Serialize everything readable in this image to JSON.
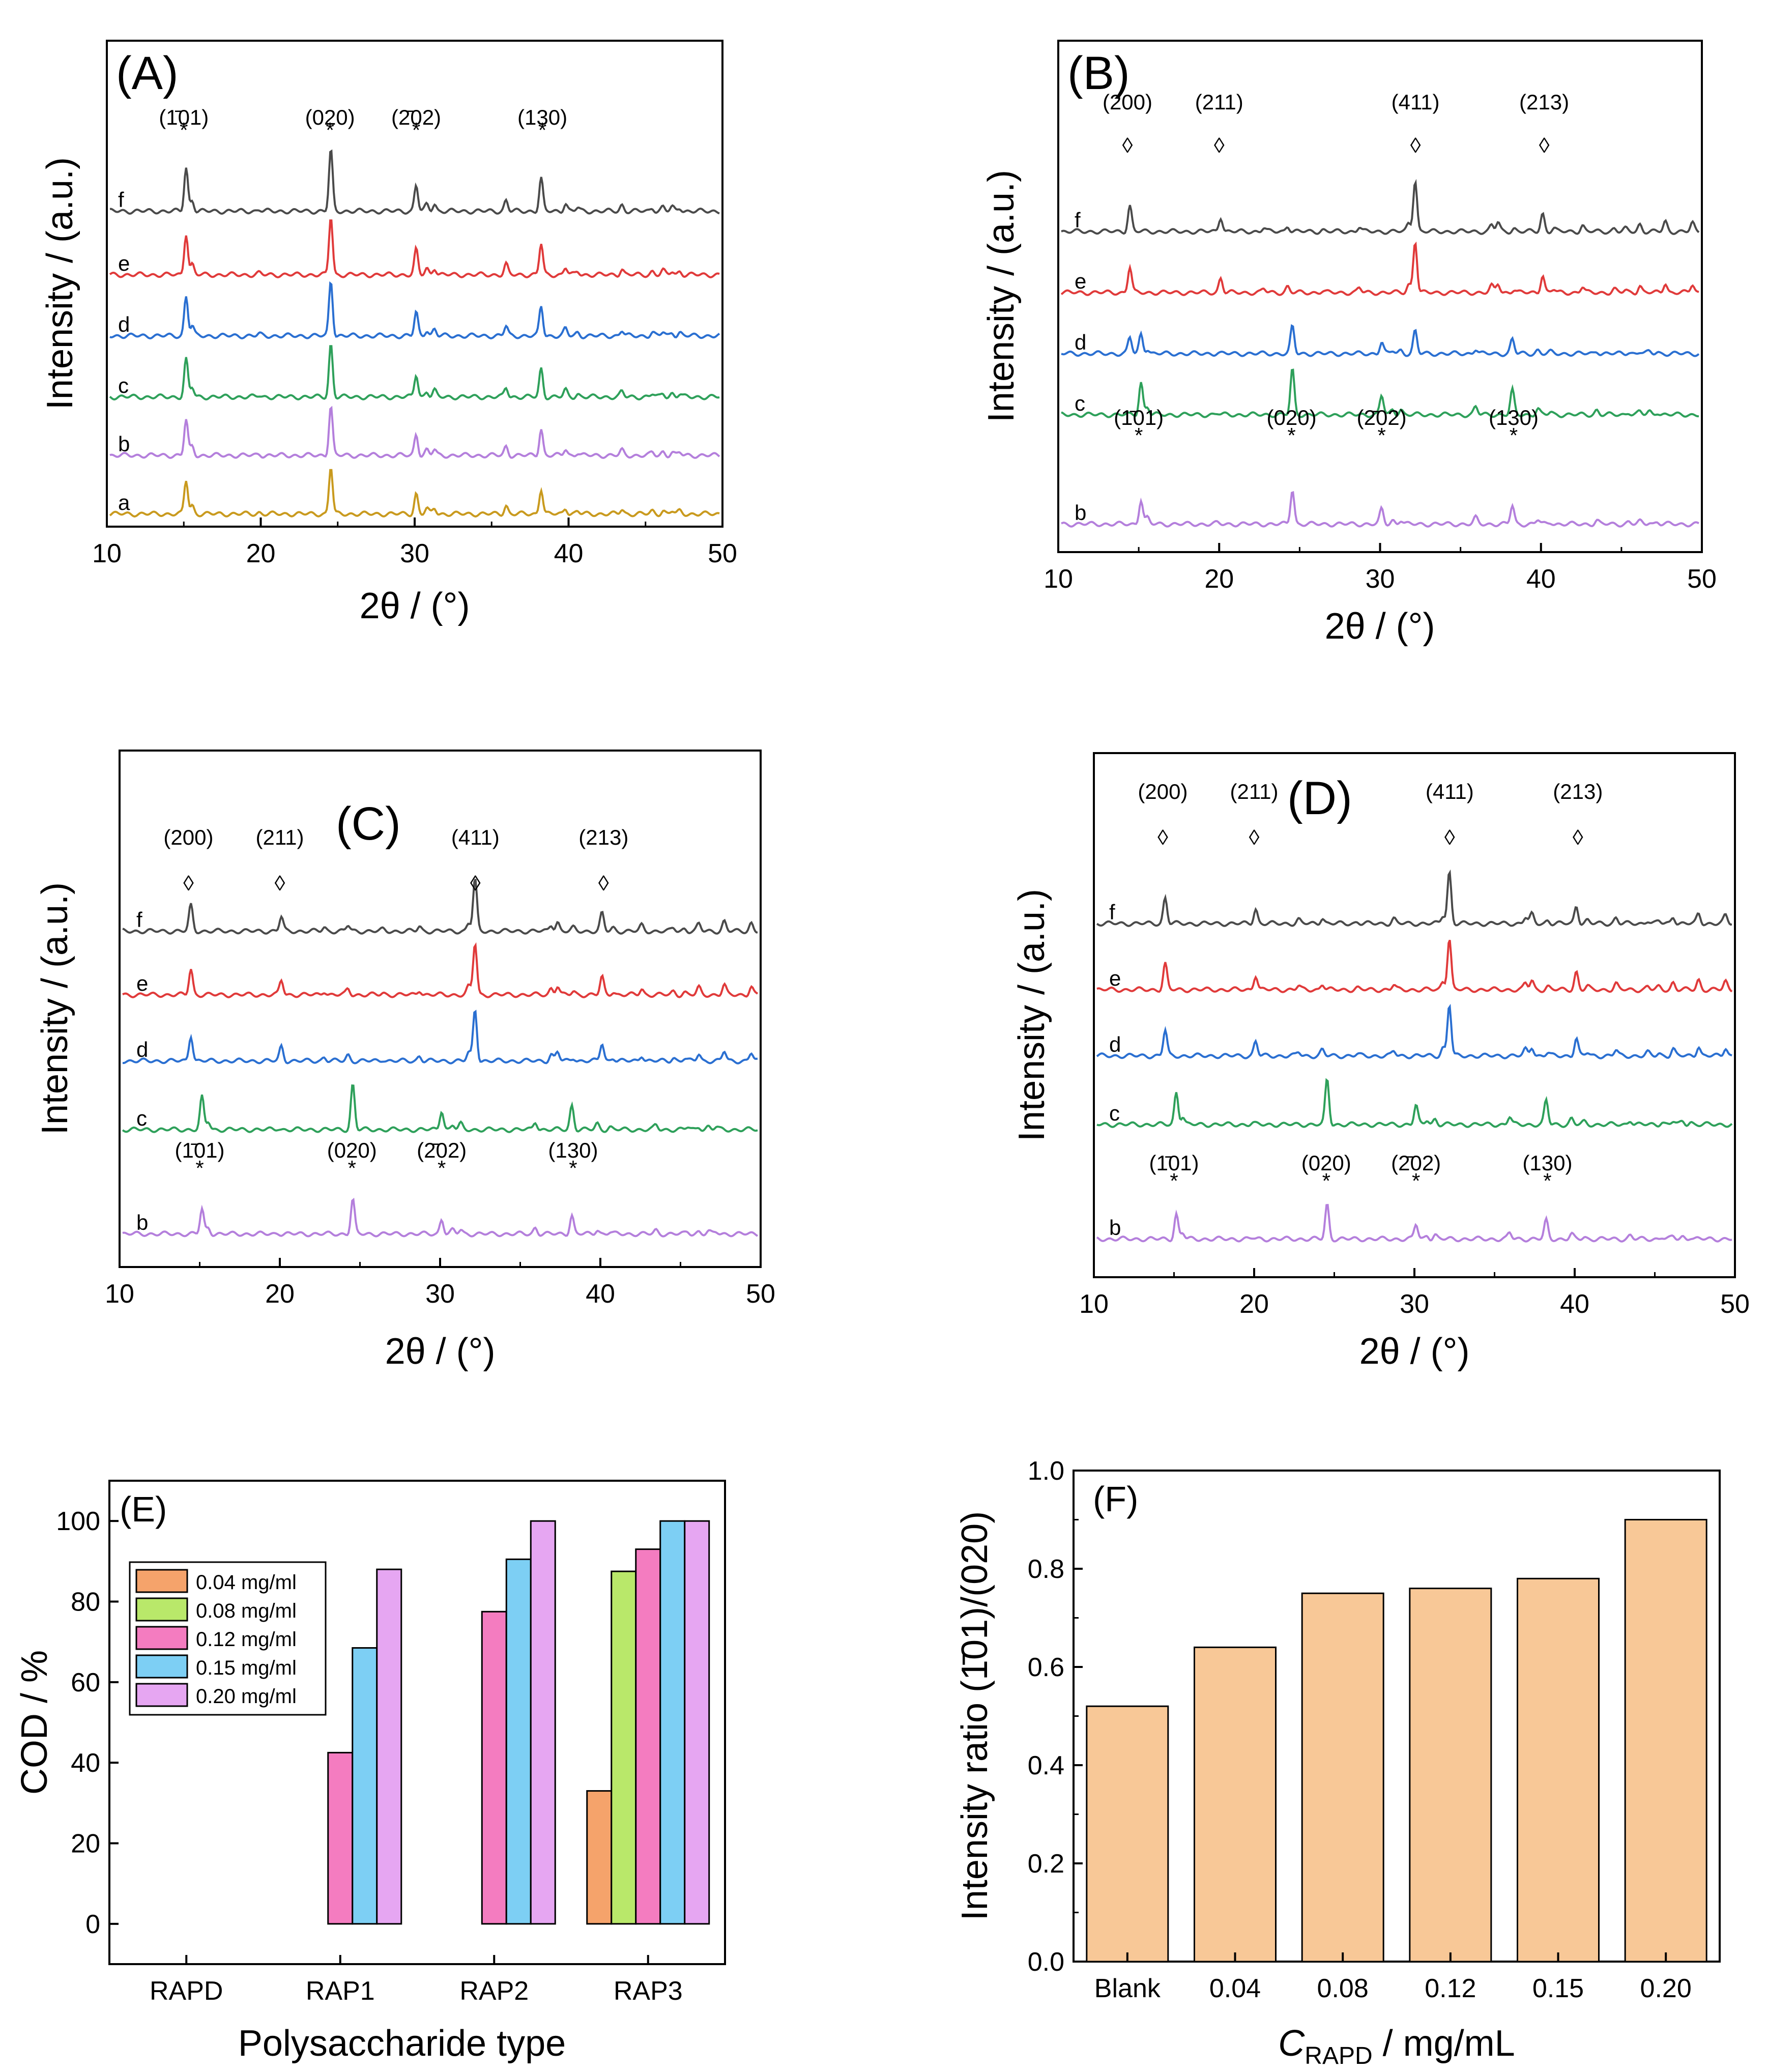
{
  "colors": {
    "a": "#c99a1e",
    "b": "#b47fdc",
    "c": "#2ea05a",
    "d": "#2a6fd1",
    "e": "#e03a3a",
    "f": "#4a4a4a",
    "bar_004": "#f5a36b",
    "bar_008": "#b9e86a",
    "bar_012": "#f47cc0",
    "bar_015": "#7dcff4",
    "bar_020": "#e6a6f2",
    "barF": "#f8c897",
    "axis": "#000000"
  },
  "chart_data": [
    {
      "type": "line",
      "panel": "(A)",
      "xlabel": "2θ / (°)",
      "ylabel": "Intensity / (a.u.)",
      "xlim": [
        10,
        50
      ],
      "xticks": [
        "10",
        "20",
        "30",
        "40",
        "50"
      ],
      "series": [
        {
          "name": "a"
        },
        {
          "name": "b"
        },
        {
          "name": "c"
        },
        {
          "name": "d"
        },
        {
          "name": "e"
        },
        {
          "name": "f"
        }
      ],
      "annotations": [
        {
          "label": "(1̄01)",
          "marker": "*",
          "x": 15.0
        },
        {
          "label": "(020)",
          "marker": "*",
          "x": 24.5
        },
        {
          "label": "(2̄02)",
          "marker": "*",
          "x": 30.1
        },
        {
          "label": "(130)",
          "marker": "*",
          "x": 38.3
        }
      ],
      "peaks": [
        [
          15.0,
          1.0
        ],
        [
          15.4,
          0.25
        ],
        [
          19.8,
          0.04
        ],
        [
          24.5,
          1.4
        ],
        [
          30.1,
          0.6
        ],
        [
          30.8,
          0.15
        ],
        [
          31.3,
          0.17
        ],
        [
          36.0,
          0.25
        ],
        [
          38.3,
          0.75
        ],
        [
          39.9,
          0.18
        ],
        [
          40.7,
          0.08
        ],
        [
          43.6,
          0.14
        ],
        [
          45.6,
          0.08
        ],
        [
          46.3,
          0.1
        ],
        [
          46.9,
          0.09
        ],
        [
          47.4,
          0.08
        ]
      ]
    },
    {
      "type": "line",
      "panel": "(B)",
      "xlabel": "2θ / (°)",
      "ylabel": "Intensity / (a.u.)",
      "xlim": [
        10,
        50
      ],
      "xticks": [
        "10",
        "20",
        "30",
        "40",
        "50"
      ],
      "series": [
        {
          "name": "b"
        },
        {
          "name": "c"
        },
        {
          "name": "d"
        },
        {
          "name": "e"
        },
        {
          "name": "f"
        }
      ],
      "annotations": [
        {
          "label": "(200)",
          "marker": "◊",
          "x": 14.3
        },
        {
          "label": "(211)",
          "marker": "◊",
          "x": 20.0
        },
        {
          "label": "(411)",
          "marker": "◊",
          "x": 32.2
        },
        {
          "label": "(213)",
          "marker": "◊",
          "x": 40.2
        },
        {
          "label": "(1̄01)",
          "marker": "*",
          "x": 15.0
        },
        {
          "label": "(020)",
          "marker": "*",
          "x": 24.5
        },
        {
          "label": "(2̄02)",
          "marker": "*",
          "x": 30.1
        },
        {
          "label": "(130)",
          "marker": "*",
          "x": 38.3
        }
      ],
      "peaks": [
        [
          14.3,
          0.8
        ],
        [
          20.0,
          0.45
        ],
        [
          22.7,
          0.12
        ],
        [
          24.2,
          0.18
        ],
        [
          26.4,
          0.05
        ],
        [
          28.7,
          0.15
        ],
        [
          31.8,
          0.25
        ],
        [
          32.2,
          1.6
        ],
        [
          37.0,
          0.2
        ],
        [
          37.4,
          0.28
        ],
        [
          38.4,
          0.1
        ],
        [
          40.2,
          0.55
        ],
        [
          40.9,
          0.1
        ],
        [
          42.7,
          0.18
        ],
        [
          44.7,
          0.1
        ],
        [
          45.4,
          0.08
        ],
        [
          46.3,
          0.22
        ],
        [
          47.9,
          0.3
        ],
        [
          49.6,
          0.25
        ]
      ]
    },
    {
      "type": "line",
      "panel": "(C)",
      "xlabel": "2θ / (°)",
      "ylabel": "Intensity / (a.u.)",
      "xlim": [
        10,
        50
      ],
      "xticks": [
        "10",
        "20",
        "30",
        "40",
        "50"
      ],
      "series": [
        {
          "name": "b"
        },
        {
          "name": "c"
        },
        {
          "name": "d"
        },
        {
          "name": "e"
        },
        {
          "name": "f"
        }
      ],
      "annotations": [
        {
          "label": "(200)",
          "marker": "◊",
          "x": 14.3
        },
        {
          "label": "(211)",
          "marker": "◊",
          "x": 20.0
        },
        {
          "label": "(411)",
          "marker": "◊",
          "x": 32.2
        },
        {
          "label": "(213)",
          "marker": "◊",
          "x": 40.2
        },
        {
          "label": "(1̄01)",
          "marker": "*",
          "x": 15.0
        },
        {
          "label": "(020)",
          "marker": "*",
          "x": 24.5
        },
        {
          "label": "(2̄02)",
          "marker": "*",
          "x": 30.1
        },
        {
          "label": "(130)",
          "marker": "*",
          "x": 38.3
        }
      ],
      "peaks": [
        [
          14.3,
          0.8
        ],
        [
          20.0,
          0.45
        ],
        [
          22.7,
          0.12
        ],
        [
          24.2,
          0.18
        ],
        [
          26.4,
          0.05
        ],
        [
          28.7,
          0.15
        ],
        [
          31.8,
          0.25
        ],
        [
          32.2,
          1.6
        ],
        [
          37.0,
          0.2
        ],
        [
          37.4,
          0.28
        ],
        [
          38.4,
          0.1
        ],
        [
          40.2,
          0.55
        ],
        [
          40.9,
          0.1
        ],
        [
          42.7,
          0.18
        ],
        [
          44.7,
          0.1
        ],
        [
          45.4,
          0.08
        ],
        [
          46.3,
          0.22
        ],
        [
          47.9,
          0.3
        ],
        [
          49.6,
          0.25
        ]
      ]
    },
    {
      "type": "line",
      "panel": "(D)",
      "xlabel": "2θ / (°)",
      "ylabel": "Intensity / (a.u.)",
      "xlim": [
        10,
        50
      ],
      "xticks": [
        "10",
        "20",
        "30",
        "40",
        "50"
      ],
      "series": [
        {
          "name": "b"
        },
        {
          "name": "c"
        },
        {
          "name": "d"
        },
        {
          "name": "e"
        },
        {
          "name": "f"
        }
      ],
      "annotations": [
        {
          "label": "(200)",
          "marker": "◊",
          "x": 14.3
        },
        {
          "label": "(211)",
          "marker": "◊",
          "x": 20.0
        },
        {
          "label": "(411)",
          "marker": "◊",
          "x": 32.2
        },
        {
          "label": "(213)",
          "marker": "◊",
          "x": 40.2
        },
        {
          "label": "(1̄01)",
          "marker": "*",
          "x": 15.0
        },
        {
          "label": "(020)",
          "marker": "*",
          "x": 24.5
        },
        {
          "label": "(2̄02)",
          "marker": "*",
          "x": 30.1
        },
        {
          "label": "(130)",
          "marker": "*",
          "x": 38.3
        }
      ],
      "peaks": [
        [
          14.3,
          0.8
        ],
        [
          20.0,
          0.45
        ],
        [
          22.7,
          0.12
        ],
        [
          24.2,
          0.18
        ],
        [
          26.4,
          0.05
        ],
        [
          28.7,
          0.15
        ],
        [
          31.8,
          0.25
        ],
        [
          32.2,
          1.6
        ],
        [
          37.0,
          0.2
        ],
        [
          37.4,
          0.28
        ],
        [
          38.4,
          0.1
        ],
        [
          40.2,
          0.55
        ],
        [
          40.9,
          0.1
        ],
        [
          42.7,
          0.18
        ],
        [
          44.7,
          0.1
        ],
        [
          45.4,
          0.08
        ],
        [
          46.3,
          0.22
        ],
        [
          47.9,
          0.3
        ],
        [
          49.6,
          0.25
        ]
      ]
    },
    {
      "type": "bar",
      "panel": "(E)",
      "xlabel": "Polysaccharide type",
      "ylabel": "COD / %",
      "ylim": [
        -10,
        110
      ],
      "yticks": [
        "0",
        "20",
        "40",
        "60",
        "80",
        "100"
      ],
      "categories": [
        "RAPD",
        "RAP1",
        "RAP2",
        "RAP3"
      ],
      "series": [
        {
          "name": "0.04 mg/ml",
          "values": [
            0,
            0,
            0,
            33
          ]
        },
        {
          "name": "0.08 mg/ml",
          "values": [
            0,
            0,
            0,
            87.5
          ]
        },
        {
          "name": "0.12 mg/ml",
          "values": [
            0,
            42.5,
            77.5,
            93
          ]
        },
        {
          "name": "0.15 mg/ml",
          "values": [
            0,
            68.5,
            90.5,
            100
          ]
        },
        {
          "name": "0.20 mg/ml",
          "values": [
            0,
            88,
            100,
            100
          ]
        }
      ],
      "legend": "top-left"
    },
    {
      "type": "bar",
      "panel": "(F)",
      "xlabel": "CRAPD / mg/mL",
      "xlabel_main": "C",
      "xlabel_sub": "RAPD",
      "xlabel_rest": " / mg/mL",
      "ylabel": "Intensity ratio (1̄01)/(020)",
      "ylim": [
        0,
        1.0
      ],
      "yticks": [
        "0.0",
        "0.2",
        "0.4",
        "0.6",
        "0.8",
        "1.0"
      ],
      "categories": [
        "Blank",
        "0.04",
        "0.08",
        "0.12",
        "0.15",
        "0.20"
      ],
      "values": [
        0.52,
        0.64,
        0.75,
        0.76,
        0.78,
        0.9
      ]
    }
  ]
}
